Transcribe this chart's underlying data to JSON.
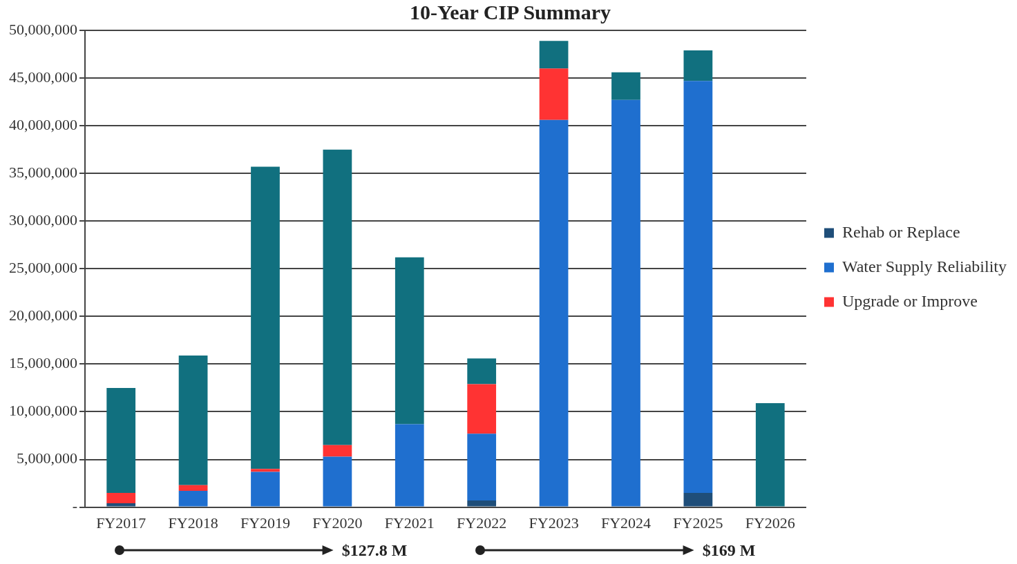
{
  "chart_data": {
    "type": "bar",
    "title": "10-Year CIP Summary",
    "stacked": true,
    "grid": "y",
    "legend": "right",
    "categories": [
      "FY2017",
      "FY2018",
      "FY2019",
      "FY2020",
      "FY2021",
      "FY2022",
      "FY2023",
      "FY2024",
      "FY2025",
      "FY2026"
    ],
    "series": [
      {
        "name": "Rehab or Replace",
        "color": "#1f4e79",
        "values": [
          400000,
          0,
          0,
          0,
          0,
          700000,
          0,
          0,
          1500000,
          0
        ]
      },
      {
        "name": "Water Supply Reliability",
        "color": "#1f6fcf",
        "values": [
          0,
          1700000,
          3700000,
          5300000,
          8700000,
          7000000,
          40600000,
          42700000,
          43200000,
          0
        ]
      },
      {
        "name": "Upgrade or Improve",
        "color": "#ff3333",
        "values": [
          1100000,
          600000,
          300000,
          1200000,
          0,
          5200000,
          5400000,
          0,
          0,
          0
        ]
      },
      {
        "color": "#11707f",
        "values": [
          11000000,
          13600000,
          31700000,
          31000000,
          17500000,
          2700000,
          2900000,
          2900000,
          3200000,
          10900000
        ]
      }
    ],
    "ylim": [
      0,
      50000000
    ],
    "yticks": [
      {
        "value": 0,
        "label": "-"
      },
      {
        "value": 5000000,
        "label": "5,000,000"
      },
      {
        "value": 10000000,
        "label": "10,000,000"
      },
      {
        "value": 15000000,
        "label": "15,000,000"
      },
      {
        "value": 20000000,
        "label": "20,000,000"
      },
      {
        "value": 25000000,
        "label": "25,000,000"
      },
      {
        "value": 30000000,
        "label": "30,000,000"
      },
      {
        "value": 35000000,
        "label": "35,000,000"
      },
      {
        "value": 40000000,
        "label": "40,000,000"
      },
      {
        "value": 45000000,
        "label": "45,000,000"
      },
      {
        "value": 50000000,
        "label": "50,000,000"
      }
    ],
    "annotations": [
      "$127.8 M",
      "$169 M"
    ]
  }
}
